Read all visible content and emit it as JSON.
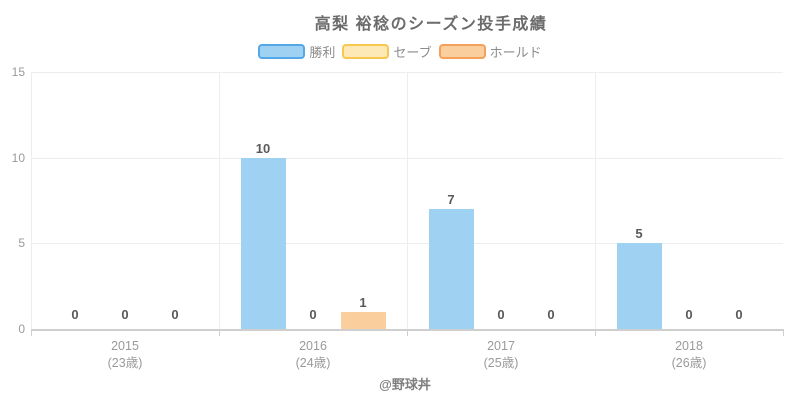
{
  "chart_data": {
    "type": "bar",
    "title": "高梨 裕稔のシーズン投手成績",
    "categories": [
      {
        "year": "2015",
        "age": "(23歳)"
      },
      {
        "year": "2016",
        "age": "(24歳)"
      },
      {
        "year": "2017",
        "age": "(25歳)"
      },
      {
        "year": "2018",
        "age": "(26歳)"
      }
    ],
    "series": [
      {
        "name": "勝利",
        "values": [
          0,
          10,
          7,
          5
        ],
        "fill": "#9fd1f3",
        "border": "#54a8e8"
      },
      {
        "name": "セーブ",
        "values": [
          0,
          0,
          0,
          0
        ],
        "fill": "#fce9b5",
        "border": "#f7c74e"
      },
      {
        "name": "ホールド",
        "values": [
          0,
          1,
          0,
          0
        ],
        "fill": "#fbcf9d",
        "border": "#f5a159"
      }
    ],
    "ylim": [
      0,
      15
    ],
    "yticks": [
      0,
      5,
      10,
      15
    ],
    "legend_position": "top",
    "grid": true,
    "value_labels": true,
    "xlabel": "",
    "ylabel": "",
    "footer": "@野球丼"
  }
}
